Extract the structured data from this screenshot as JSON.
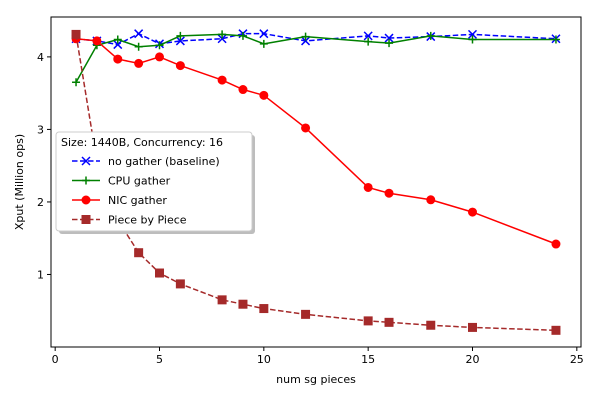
{
  "chart_data": {
    "type": "line",
    "xlabel": "num sg pieces",
    "ylabel": "Xput (Million ops)",
    "xlim": [
      -0.2,
      25.2
    ],
    "ylim": [
      0.0,
      4.55
    ],
    "xticks": [
      0,
      5,
      10,
      15,
      20,
      25
    ],
    "yticks": [
      1,
      2,
      3,
      4
    ],
    "grid": false,
    "legend_placement": "center-left",
    "legend_title": "Size: 1440B, Concurrency: 16",
    "series": [
      {
        "name": "no gather (baseline)",
        "color": "#0000ff",
        "linestyle": "dashed",
        "marker": "x",
        "x": [
          1,
          2,
          3,
          4,
          5,
          6,
          8,
          9,
          10,
          12,
          15,
          16,
          18,
          20,
          24
        ],
        "y": [
          4.25,
          4.22,
          4.17,
          4.32,
          4.18,
          4.22,
          4.25,
          4.32,
          4.32,
          4.22,
          4.29,
          4.26,
          4.28,
          4.31,
          4.25
        ]
      },
      {
        "name": "CPU gather",
        "color": "#008000",
        "linestyle": "solid",
        "marker": "+",
        "x": [
          1,
          2,
          3,
          4,
          5,
          6,
          8,
          9,
          10,
          12,
          15,
          16,
          18,
          20,
          24
        ],
        "y": [
          3.65,
          4.16,
          4.24,
          4.14,
          4.16,
          4.29,
          4.31,
          4.29,
          4.18,
          4.28,
          4.21,
          4.19,
          4.29,
          4.24,
          4.24
        ]
      },
      {
        "name": "NIC gather",
        "color": "#ff0000",
        "linestyle": "solid",
        "marker": "o",
        "x": [
          1,
          2,
          3,
          4,
          5,
          6,
          8,
          9,
          10,
          12,
          15,
          16,
          18,
          20,
          24
        ],
        "y": [
          4.25,
          4.22,
          3.97,
          3.91,
          4.0,
          3.88,
          3.68,
          3.55,
          3.47,
          3.02,
          2.2,
          2.12,
          2.03,
          1.86,
          1.42
        ]
      },
      {
        "name": "Piece by Piece",
        "color": "#a52a2a",
        "linestyle": "dashed",
        "marker": "s",
        "x": [
          1,
          2,
          3,
          4,
          5,
          6,
          8,
          9,
          10,
          12,
          15,
          16,
          18,
          20,
          24
        ],
        "y": [
          4.31,
          2.55,
          1.75,
          1.3,
          1.02,
          0.87,
          0.65,
          0.59,
          0.53,
          0.45,
          0.36,
          0.34,
          0.3,
          0.27,
          0.23
        ]
      }
    ]
  }
}
